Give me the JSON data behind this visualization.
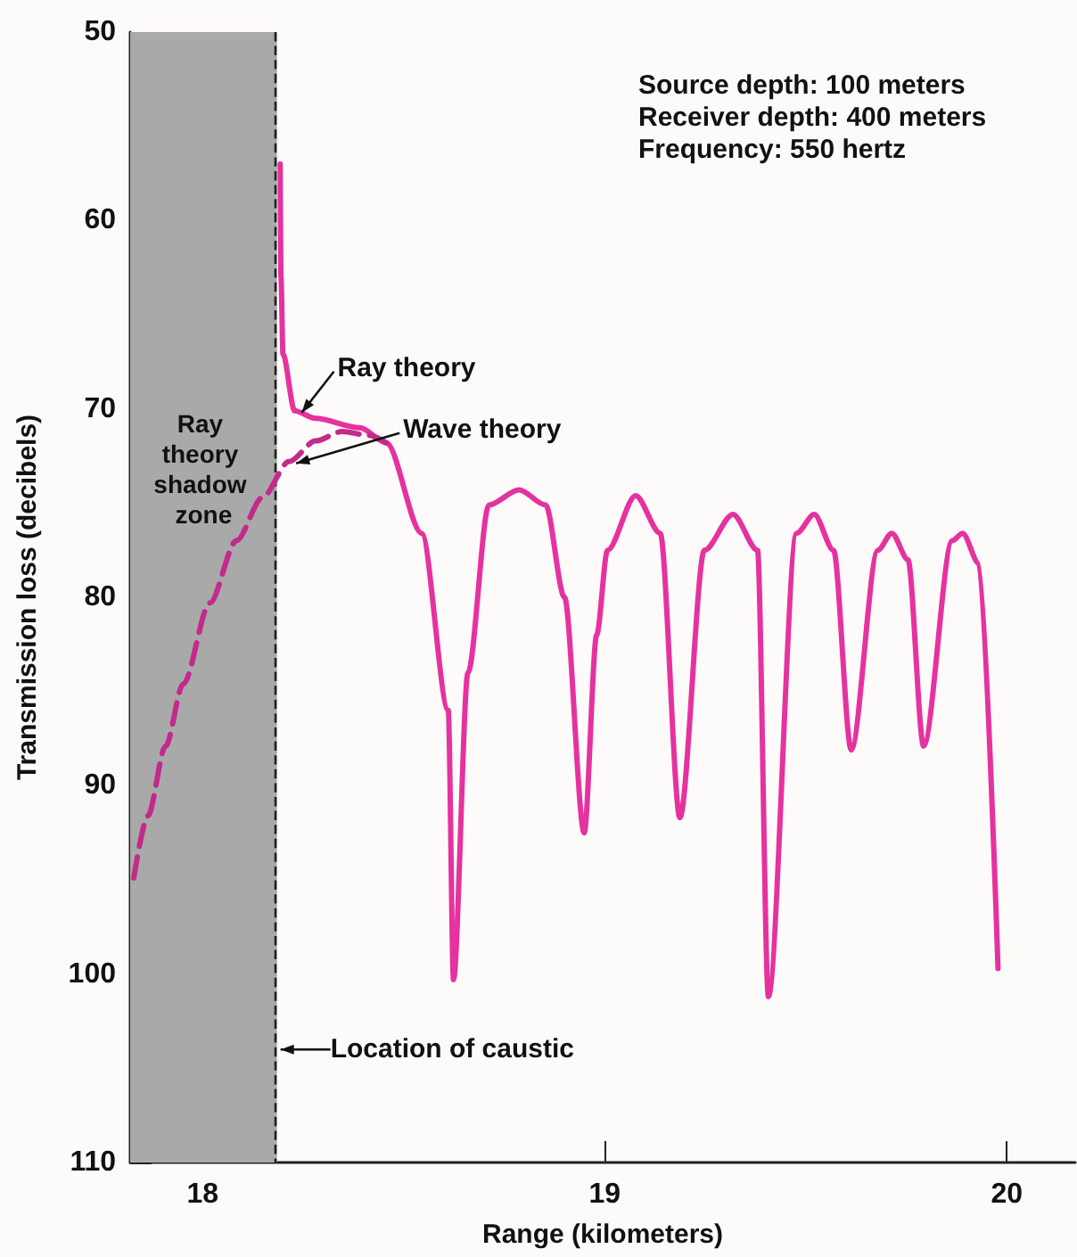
{
  "chart_data": {
    "type": "line",
    "xlabel": "Range (kilometers)",
    "ylabel": "Transmission loss (decibels)",
    "xlim": [
      17.82,
      20.17
    ],
    "xticks": [
      18,
      19,
      20
    ],
    "ylim": [
      110,
      50
    ],
    "yticks": [
      50,
      60,
      70,
      80,
      90,
      100,
      110
    ],
    "grid": false,
    "legend": false,
    "marker": "none",
    "series": [
      {
        "name": "Ray theory",
        "color": "#e5329f",
        "line_style": "solid",
        "x": [
          18.193,
          18.195,
          18.2,
          18.229,
          18.281,
          18.391,
          18.457,
          18.545,
          18.611,
          18.624,
          18.66,
          18.712,
          18.787,
          18.853,
          18.9,
          18.949,
          18.98,
          19.007,
          19.077,
          19.138,
          19.187,
          19.248,
          19.319,
          19.38,
          19.407,
          19.477,
          19.521,
          19.569,
          19.613,
          19.679,
          19.714,
          19.754,
          19.793,
          19.864,
          19.89,
          19.93,
          19.978
        ],
        "values": [
          57.0,
          63.0,
          67.1,
          70.1,
          70.5,
          71.0,
          71.8,
          76.6,
          86.0,
          100.3,
          84.0,
          75.1,
          74.3,
          75.1,
          80.0,
          92.5,
          82.0,
          77.5,
          74.6,
          76.6,
          91.7,
          77.5,
          75.6,
          77.5,
          101.2,
          76.6,
          75.6,
          77.5,
          88.1,
          77.5,
          76.6,
          78.0,
          87.9,
          77.0,
          76.6,
          78.2,
          99.7
        ]
      },
      {
        "name": "Wave theory",
        "color": "#c22a8c",
        "line_style": "dashed",
        "x": [
          17.829,
          17.864,
          17.908,
          17.952,
          18.018,
          18.084,
          18.149,
          18.215,
          18.281,
          18.347,
          18.413,
          18.457
        ],
        "values": [
          94.9,
          91.6,
          87.9,
          84.6,
          80.3,
          77.0,
          74.7,
          72.8,
          71.7,
          71.2,
          71.4,
          71.8
        ]
      }
    ],
    "bands": [
      {
        "axis": "x",
        "from": 17.82,
        "to": 18.185,
        "label": "Ray theory shadow zone",
        "color": "#a9a9a9"
      }
    ],
    "ref_lines": [
      {
        "axis": "x",
        "value": 18.185,
        "label": "Location of caustic",
        "color": "#222222",
        "line_style": "dashed"
      }
    ],
    "annotations": [
      "Source depth: 100 meters",
      "Receiver depth: 400 meters",
      "Frequency: 550 hertz"
    ]
  }
}
